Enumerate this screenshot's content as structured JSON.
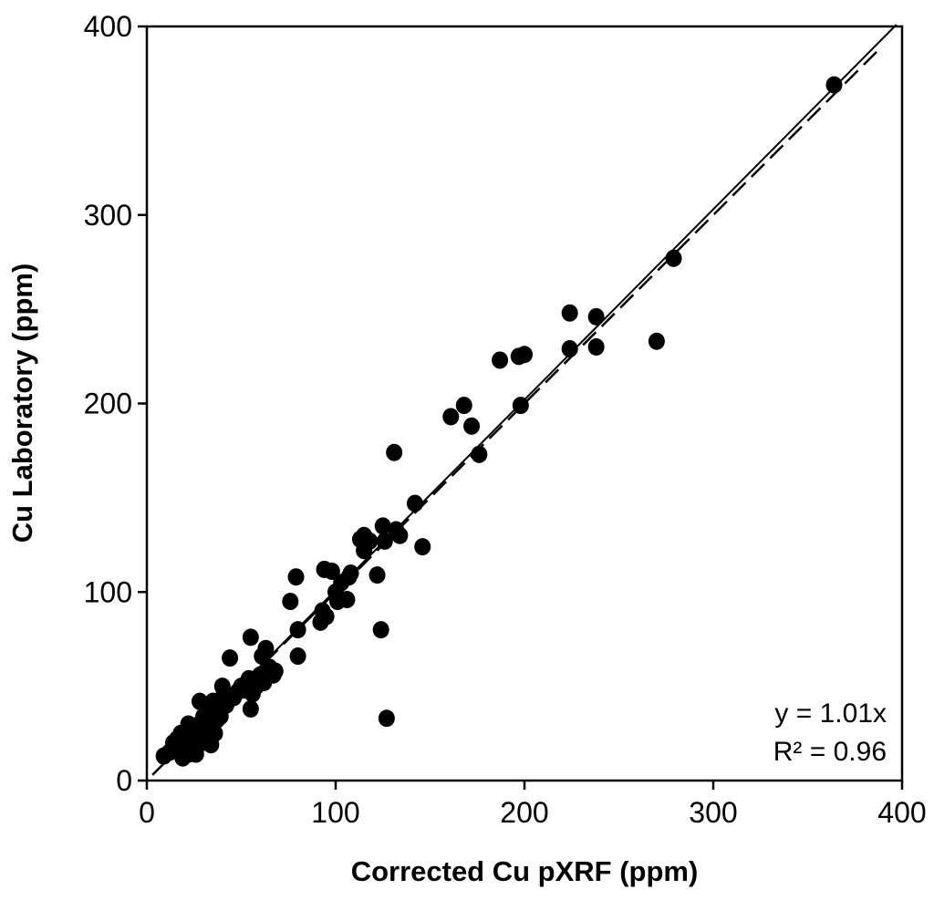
{
  "chart_data": {
    "type": "scatter",
    "xlabel": "Corrected Cu pXRF (ppm)",
    "ylabel": "Cu Laboratory (ppm)",
    "xlim": [
      0,
      400
    ],
    "ylim": [
      0,
      400
    ],
    "xticks": [
      0,
      100,
      200,
      300,
      400
    ],
    "yticks": [
      0,
      100,
      200,
      300,
      400
    ],
    "grid": false,
    "annotations": [
      "y = 1.01x",
      "R² = 0.96"
    ],
    "lines": [
      {
        "kind": "regression",
        "style": "solid",
        "slope": 1.01,
        "intercept": 0
      },
      {
        "kind": "one-to-one",
        "style": "dashed",
        "slope": 1.0,
        "intercept": 0
      }
    ],
    "points": [
      [
        9,
        13
      ],
      [
        12,
        15
      ],
      [
        14,
        20
      ],
      [
        16,
        22
      ],
      [
        17,
        18
      ],
      [
        18,
        25
      ],
      [
        19,
        12
      ],
      [
        20,
        15
      ],
      [
        20,
        20
      ],
      [
        21,
        18
      ],
      [
        21,
        24
      ],
      [
        22,
        14
      ],
      [
        22,
        30
      ],
      [
        23,
        20
      ],
      [
        24,
        26
      ],
      [
        25,
        22
      ],
      [
        25,
        16
      ],
      [
        26,
        14
      ],
      [
        27,
        24
      ],
      [
        28,
        30
      ],
      [
        28,
        42
      ],
      [
        29,
        20
      ],
      [
        30,
        28
      ],
      [
        30,
        34
      ],
      [
        31,
        26
      ],
      [
        32,
        40
      ],
      [
        32,
        22
      ],
      [
        33,
        36
      ],
      [
        34,
        30
      ],
      [
        34,
        19
      ],
      [
        35,
        42
      ],
      [
        36,
        25
      ],
      [
        37,
        32
      ],
      [
        38,
        38
      ],
      [
        39,
        34
      ],
      [
        40,
        44
      ],
      [
        40,
        50
      ],
      [
        42,
        40
      ],
      [
        44,
        65
      ],
      [
        46,
        44
      ],
      [
        48,
        47
      ],
      [
        50,
        50
      ],
      [
        52,
        48
      ],
      [
        54,
        54
      ],
      [
        55,
        38
      ],
      [
        55,
        76
      ],
      [
        56,
        46
      ],
      [
        57,
        52
      ],
      [
        58,
        50
      ],
      [
        60,
        56
      ],
      [
        61,
        66
      ],
      [
        62,
        52
      ],
      [
        63,
        70
      ],
      [
        65,
        60
      ],
      [
        67,
        56
      ],
      [
        68,
        58
      ],
      [
        76,
        95
      ],
      [
        79,
        108
      ],
      [
        80,
        66
      ],
      [
        80,
        80
      ],
      [
        92,
        84
      ],
      [
        93,
        90
      ],
      [
        94,
        112
      ],
      [
        95,
        87
      ],
      [
        98,
        111
      ],
      [
        100,
        100
      ],
      [
        101,
        95
      ],
      [
        103,
        105
      ],
      [
        106,
        96
      ],
      [
        107,
        108
      ],
      [
        108,
        110
      ],
      [
        113,
        128
      ],
      [
        115,
        122
      ],
      [
        115,
        130
      ],
      [
        118,
        127
      ],
      [
        122,
        109
      ],
      [
        124,
        80
      ],
      [
        125,
        135
      ],
      [
        126,
        127
      ],
      [
        127,
        33
      ],
      [
        131,
        174
      ],
      [
        132,
        133
      ],
      [
        134,
        130
      ],
      [
        142,
        147
      ],
      [
        146,
        124
      ],
      [
        161,
        193
      ],
      [
        168,
        199
      ],
      [
        172,
        188
      ],
      [
        176,
        173
      ],
      [
        187,
        223
      ],
      [
        197,
        225
      ],
      [
        198,
        199
      ],
      [
        200,
        226
      ],
      [
        224,
        248
      ],
      [
        224,
        229
      ],
      [
        238,
        246
      ],
      [
        238,
        230
      ],
      [
        270,
        233
      ],
      [
        279,
        277
      ],
      [
        364,
        369
      ]
    ]
  }
}
